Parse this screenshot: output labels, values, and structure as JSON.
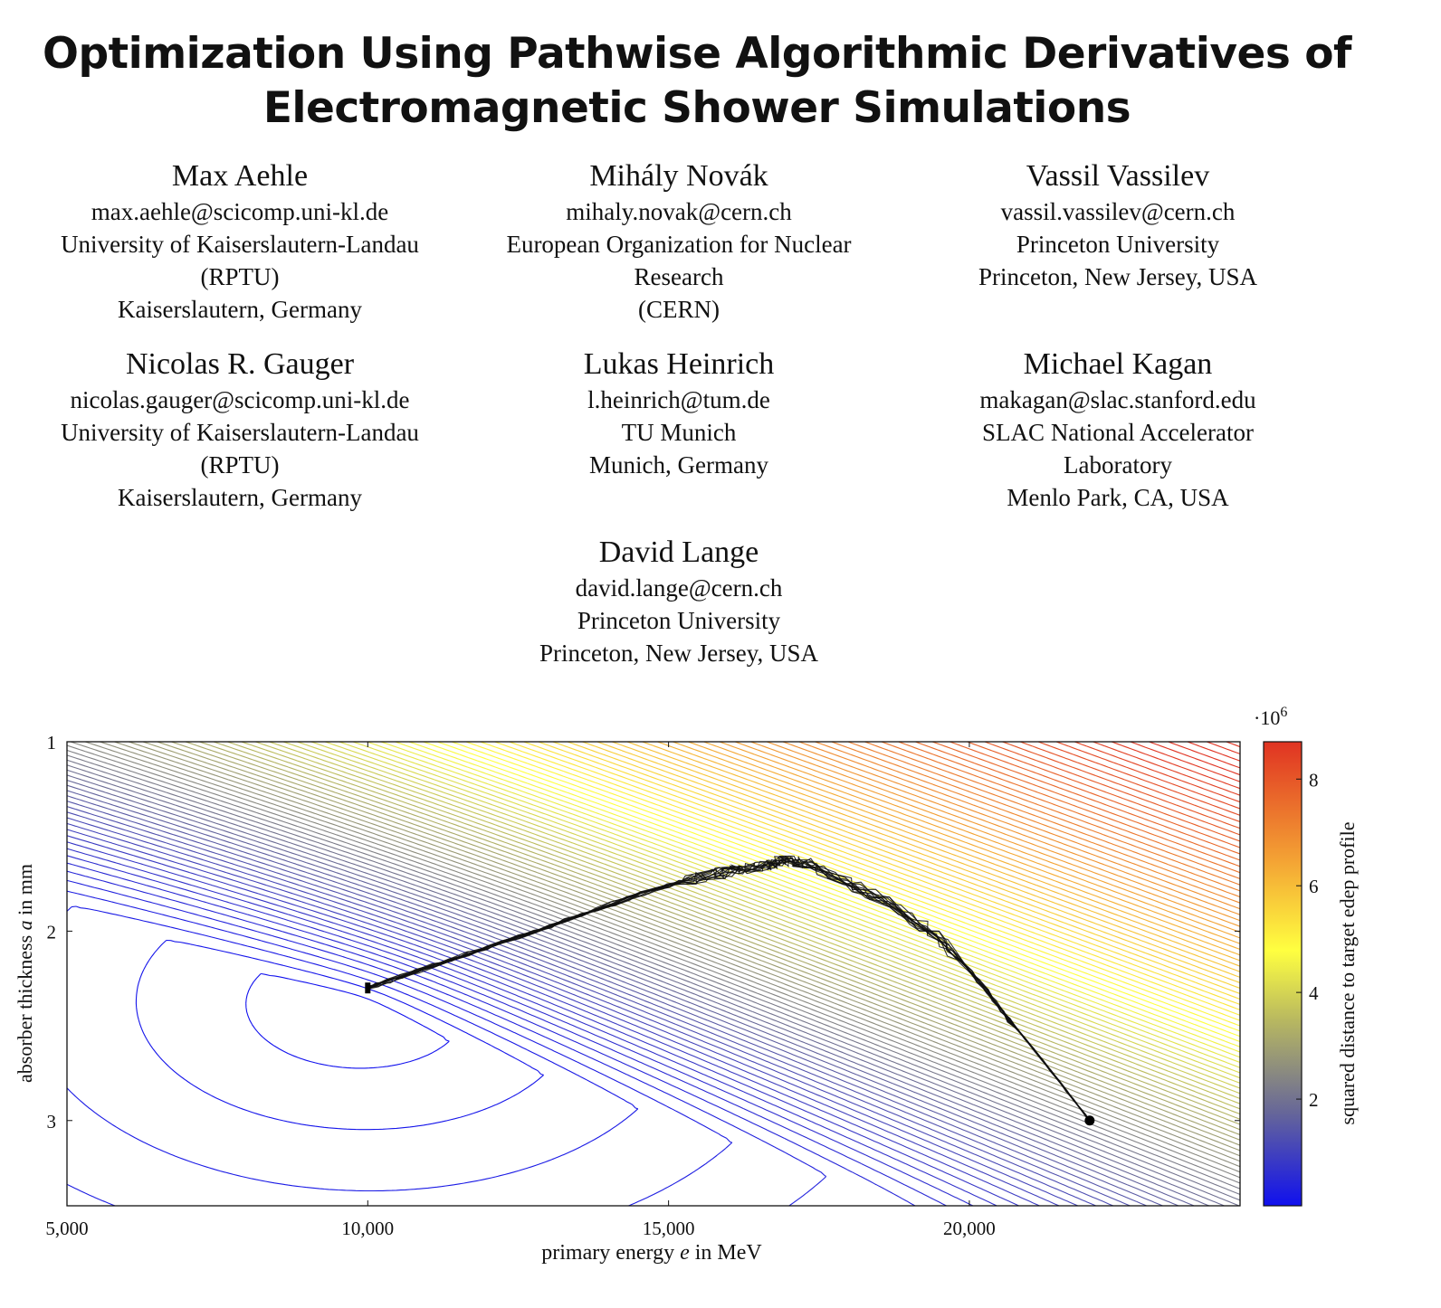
{
  "paper": {
    "title_lines": [
      "Optimization Using Pathwise Algorithmic Derivatives of",
      "Electromagnetic Shower Simulations"
    ],
    "authors": [
      {
        "name": "Max Aehle",
        "email": "max.aehle@scicomp.uni-kl.de",
        "affil": [
          "University of Kaiserslautern-Landau",
          "(RPTU)",
          "Kaiserslautern, Germany"
        ]
      },
      {
        "name": "Mihály Novák",
        "email": "mihaly.novak@cern.ch",
        "affil": [
          "European Organization for Nuclear",
          "Research",
          "(CERN)"
        ]
      },
      {
        "name": "Vassil Vassilev",
        "email": "vassil.vassilev@cern.ch",
        "affil": [
          "Princeton University",
          "Princeton, New Jersey, USA"
        ]
      },
      {
        "name": "Nicolas R. Gauger",
        "email": "nicolas.gauger@scicomp.uni-kl.de",
        "affil": [
          "University of Kaiserslautern-Landau",
          "(RPTU)",
          "Kaiserslautern, Germany"
        ]
      },
      {
        "name": "Lukas Heinrich",
        "email": "l.heinrich@tum.de",
        "affil": [
          "TU Munich",
          "Munich, Germany"
        ]
      },
      {
        "name": "Michael Kagan",
        "email": "makagan@slac.stanford.edu",
        "affil": [
          "SLAC National Accelerator",
          "Laboratory",
          "Menlo Park, CA, USA"
        ]
      },
      {
        "name": "David Lange",
        "email": "david.lange@cern.ch",
        "affil": [
          "Princeton University",
          "Princeton, New Jersey, USA"
        ]
      }
    ]
  },
  "chart_data": {
    "type": "contour",
    "xlabel_prefix": "primary energy ",
    "xlabel_var": "e",
    "xlabel_suffix": " in MeV",
    "ylabel_prefix": "absorber thickness ",
    "ylabel_var": "a",
    "ylabel_suffix": " in mm",
    "xlim": [
      5000,
      24500
    ],
    "ylim": [
      3.45,
      1
    ],
    "xticks": [
      5000,
      10000,
      15000,
      20000
    ],
    "xtick_labels": [
      "5,000",
      "10,000",
      "15,000",
      "20,000"
    ],
    "yticks": [
      1,
      2,
      3
    ],
    "ytick_labels": [
      "1",
      "2",
      "3"
    ],
    "colorbar": {
      "label": "squared distance to target edep profile",
      "multiplier_base": "·10",
      "multiplier_exp": "6",
      "ticks": [
        2,
        4,
        6,
        8
      ],
      "tick_labels": [
        "2",
        "4",
        "6",
        "8"
      ],
      "range": [
        0,
        8.7
      ],
      "colors": [
        "#1010ee",
        "#666699",
        "#b8b860",
        "#ffff40",
        "#f3a034",
        "#e03322"
      ]
    },
    "minimum": {
      "x": 9800,
      "y": 2.4
    },
    "start_point": {
      "x": 22000,
      "y": 3.0
    },
    "end_point": {
      "x": 10000,
      "y": 2.3
    },
    "trajectory_waypoints": [
      {
        "x": 22000,
        "y": 3.0
      },
      {
        "x": 20800,
        "y": 2.52
      },
      {
        "x": 19400,
        "y": 2.02
      },
      {
        "x": 17400,
        "y": 1.66
      },
      {
        "x": 16500,
        "y": 1.66
      },
      {
        "x": 15000,
        "y": 1.76
      },
      {
        "x": 12500,
        "y": 2.03
      },
      {
        "x": 10000,
        "y": 2.3
      }
    ],
    "trajectory_count": 12
  }
}
